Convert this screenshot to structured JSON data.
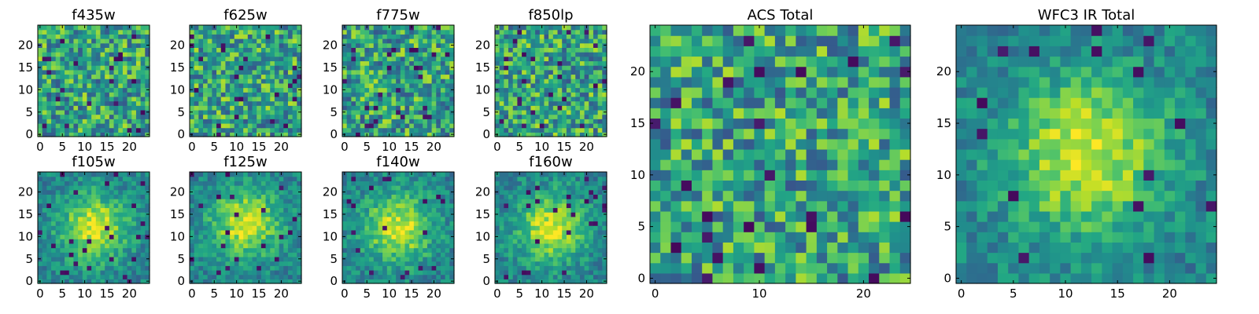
{
  "colors": {
    "colormap": "viridis",
    "low": "#440154",
    "mid": "#21918c",
    "high": "#fde725",
    "axes_frame": "#000000",
    "background": "#ffffff"
  },
  "chart_data": [
    {
      "type": "heatmap",
      "title": "f435w",
      "x_ticks": [
        "0",
        "5",
        "10",
        "15",
        "20"
      ],
      "y_ticks": [
        "0",
        "5",
        "10",
        "15",
        "20"
      ],
      "grid_size": 25,
      "xlim": [
        -0.5,
        24.5
      ],
      "ylim": [
        -0.5,
        24.5
      ],
      "pattern": "noise"
    },
    {
      "type": "heatmap",
      "title": "f625w",
      "x_ticks": [
        "0",
        "5",
        "10",
        "15",
        "20"
      ],
      "y_ticks": [
        "0",
        "5",
        "10",
        "15",
        "20"
      ],
      "grid_size": 25,
      "xlim": [
        -0.5,
        24.5
      ],
      "ylim": [
        -0.5,
        24.5
      ],
      "pattern": "noise"
    },
    {
      "type": "heatmap",
      "title": "f775w",
      "x_ticks": [
        "0",
        "5",
        "10",
        "15",
        "20"
      ],
      "y_ticks": [
        "0",
        "5",
        "10",
        "15",
        "20"
      ],
      "grid_size": 25,
      "xlim": [
        -0.5,
        24.5
      ],
      "ylim": [
        -0.5,
        24.5
      ],
      "pattern": "noise"
    },
    {
      "type": "heatmap",
      "title": "f850lp",
      "x_ticks": [
        "0",
        "5",
        "10",
        "15",
        "20"
      ],
      "y_ticks": [
        "0",
        "5",
        "10",
        "15",
        "20"
      ],
      "grid_size": 25,
      "xlim": [
        -0.5,
        24.5
      ],
      "ylim": [
        -0.5,
        24.5
      ],
      "pattern": "noise"
    },
    {
      "type": "heatmap",
      "title": "f105w",
      "x_ticks": [
        "0",
        "5",
        "10",
        "15",
        "20"
      ],
      "y_ticks": [
        "0",
        "5",
        "10",
        "15",
        "20"
      ],
      "grid_size": 25,
      "xlim": [
        -0.5,
        24.5
      ],
      "ylim": [
        -0.5,
        24.5
      ],
      "pattern": "central-source",
      "source_center": [
        12,
        12
      ]
    },
    {
      "type": "heatmap",
      "title": "f125w",
      "x_ticks": [
        "0",
        "5",
        "10",
        "15",
        "20"
      ],
      "y_ticks": [
        "0",
        "5",
        "10",
        "15",
        "20"
      ],
      "grid_size": 25,
      "xlim": [
        -0.5,
        24.5
      ],
      "ylim": [
        -0.5,
        24.5
      ],
      "pattern": "central-source",
      "source_center": [
        12,
        13
      ]
    },
    {
      "type": "heatmap",
      "title": "f140w",
      "x_ticks": [
        "0",
        "5",
        "10",
        "15",
        "20"
      ],
      "y_ticks": [
        "0",
        "5",
        "10",
        "15",
        "20"
      ],
      "grid_size": 25,
      "xlim": [
        -0.5,
        24.5
      ],
      "ylim": [
        -0.5,
        24.5
      ],
      "pattern": "central-source",
      "source_center": [
        12,
        12
      ]
    },
    {
      "type": "heatmap",
      "title": "f160w",
      "x_ticks": [
        "0",
        "5",
        "10",
        "15",
        "20"
      ],
      "y_ticks": [
        "0",
        "5",
        "10",
        "15",
        "20"
      ],
      "grid_size": 25,
      "xlim": [
        -0.5,
        24.5
      ],
      "ylim": [
        -0.5,
        24.5
      ],
      "pattern": "central-source",
      "source_center": [
        12,
        12
      ]
    },
    {
      "type": "heatmap",
      "title": "ACS Total",
      "x_ticks": [
        "0",
        "10",
        "20"
      ],
      "y_ticks": [
        "0",
        "5",
        "10",
        "15",
        "20"
      ],
      "grid_size": 25,
      "xlim": [
        -0.5,
        24.5
      ],
      "ylim": [
        -0.5,
        24.5
      ],
      "pattern": "noise"
    },
    {
      "type": "heatmap",
      "title": "WFC3 IR Total",
      "x_ticks": [
        "0",
        "5",
        "10",
        "15",
        "20"
      ],
      "y_ticks": [
        "0",
        "5",
        "10",
        "15",
        "20"
      ],
      "grid_size": 25,
      "xlim": [
        -0.5,
        24.5
      ],
      "ylim": [
        -0.5,
        24.5
      ],
      "pattern": "central-source",
      "source_center": [
        12,
        12
      ]
    }
  ]
}
